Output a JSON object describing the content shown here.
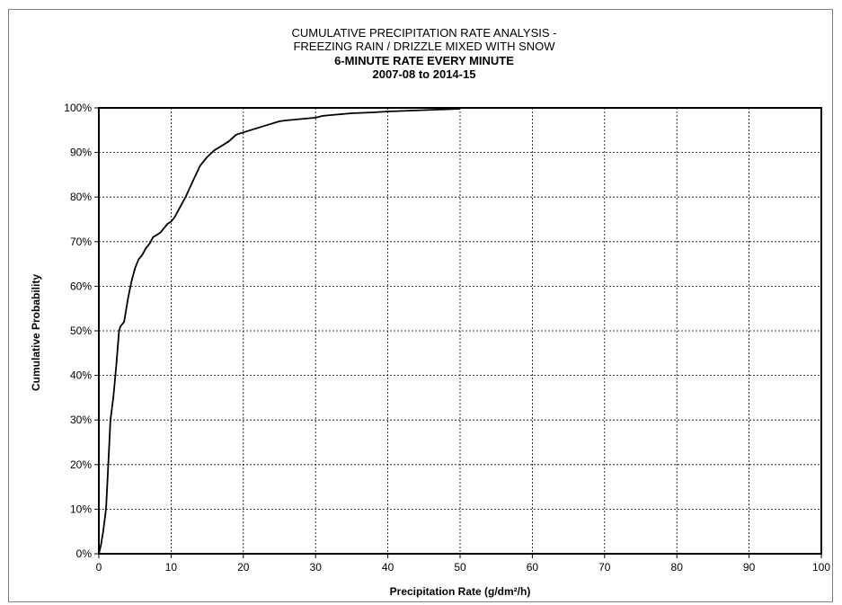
{
  "chart_data": {
    "type": "line",
    "title_lines": [
      "CUMULATIVE PRECIPITATION RATE ANALYSIS -",
      "FREEZING RAIN / DRIZZLE MIXED WITH SNOW",
      "6-MINUTE RATE EVERY MINUTE",
      "2007-08 to 2014-15"
    ],
    "title_bold": [
      false,
      false,
      true,
      true
    ],
    "xlabel": "Precipitation Rate (g/dm²/h)",
    "ylabel": "Cumulative Probability",
    "xlim": [
      0,
      100
    ],
    "ylim": [
      0,
      1
    ],
    "x_ticks": [
      0,
      10,
      20,
      30,
      40,
      50,
      60,
      70,
      80,
      90,
      100
    ],
    "x_tick_labels": [
      "0",
      "10",
      "20",
      "30",
      "40",
      "50",
      "60",
      "70",
      "80",
      "90",
      "100"
    ],
    "y_ticks": [
      0,
      0.1,
      0.2,
      0.3,
      0.4,
      0.5,
      0.6,
      0.7,
      0.8,
      0.9,
      1.0
    ],
    "y_tick_labels": [
      "0%",
      "10%",
      "20%",
      "30%",
      "40%",
      "50%",
      "60%",
      "70%",
      "80%",
      "90%",
      "100%"
    ],
    "grid": true,
    "line_color": "#000000",
    "series": [
      {
        "x": [
          0,
          0.3,
          0.6,
          1.0,
          1.3,
          1.6,
          2.0,
          2.4,
          2.8,
          3.0,
          3.5,
          4.0,
          4.5,
          5.0,
          5.5,
          6.0,
          6.5,
          7.0,
          7.5,
          8.0,
          8.5,
          9.0,
          9.5,
          10.0,
          10.5,
          11.0,
          12.0,
          13.0,
          14.0,
          15.0,
          16.0,
          17.0,
          18.0,
          19.0,
          20.0,
          21.0,
          22.0,
          23.0,
          24.0,
          25.0,
          26.0,
          28.0,
          30.0,
          31.0,
          33.0,
          35.0,
          38.0,
          40.0,
          45.0,
          50.0
        ],
        "y": [
          0.0,
          0.02,
          0.05,
          0.1,
          0.2,
          0.3,
          0.35,
          0.42,
          0.5,
          0.51,
          0.52,
          0.57,
          0.61,
          0.64,
          0.66,
          0.67,
          0.685,
          0.695,
          0.71,
          0.715,
          0.72,
          0.73,
          0.74,
          0.745,
          0.755,
          0.77,
          0.8,
          0.835,
          0.87,
          0.89,
          0.905,
          0.915,
          0.925,
          0.94,
          0.945,
          0.95,
          0.955,
          0.96,
          0.965,
          0.97,
          0.972,
          0.975,
          0.978,
          0.982,
          0.985,
          0.988,
          0.99,
          0.992,
          0.995,
          0.998
        ]
      }
    ]
  }
}
